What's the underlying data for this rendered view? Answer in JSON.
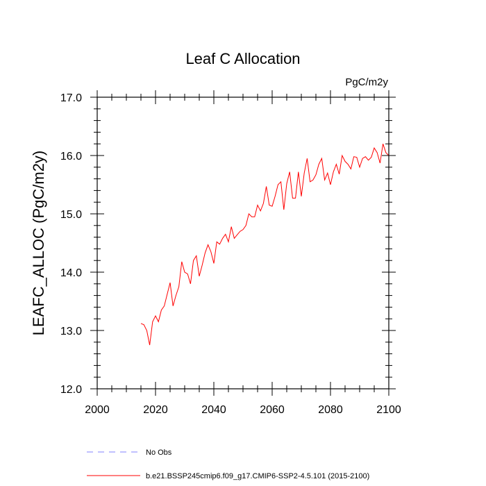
{
  "chart_data": {
    "type": "line",
    "title": "Leaf C Allocation",
    "units_label": "PgC/m2y",
    "ylabel": "LEAFC_ALLOC  (PgC/m2y)",
    "xlabel": "",
    "xlim": [
      2000,
      2100
    ],
    "ylim": [
      12.0,
      17.0
    ],
    "xticks": [
      2000,
      2020,
      2040,
      2060,
      2080,
      2100
    ],
    "xtick_labels": [
      "2000",
      "2020",
      "2040",
      "2060",
      "2080",
      "2100"
    ],
    "yticks": [
      12.0,
      13.0,
      14.0,
      15.0,
      16.0,
      17.0
    ],
    "ytick_labels": [
      "12.0",
      "13.0",
      "14.0",
      "15.0",
      "16.0",
      "17.0"
    ],
    "legend_location": "bottom",
    "series": [
      {
        "name": "b.e21.BSSP245cmip6.f09_g17.CMIP6-SSP2-4.5.101 (2015-2100)",
        "color": "#ff0000",
        "style": "solid",
        "x": [
          2015,
          2016,
          2017,
          2018,
          2019,
          2020,
          2021,
          2022,
          2023,
          2024,
          2025,
          2026,
          2027,
          2028,
          2029,
          2030,
          2031,
          2032,
          2033,
          2034,
          2035,
          2036,
          2037,
          2038,
          2039,
          2040,
          2041,
          2042,
          2043,
          2044,
          2045,
          2046,
          2047,
          2048,
          2049,
          2050,
          2051,
          2052,
          2053,
          2054,
          2055,
          2056,
          2057,
          2058,
          2059,
          2060,
          2061,
          2062,
          2063,
          2064,
          2065,
          2066,
          2067,
          2068,
          2069,
          2070,
          2071,
          2072,
          2073,
          2074,
          2075,
          2076,
          2077,
          2078,
          2079,
          2080,
          2081,
          2082,
          2083,
          2084,
          2085,
          2086,
          2087,
          2088,
          2089,
          2090,
          2091,
          2092,
          2093,
          2094,
          2095,
          2096,
          2097,
          2098,
          2099,
          2100
        ],
        "values": [
          13.12,
          13.1,
          13.0,
          12.75,
          13.15,
          13.25,
          13.15,
          13.35,
          13.42,
          13.62,
          13.82,
          13.42,
          13.6,
          13.75,
          14.18,
          14.0,
          13.97,
          13.8,
          14.2,
          14.28,
          13.93,
          14.12,
          14.33,
          14.47,
          14.35,
          14.15,
          14.52,
          14.48,
          14.58,
          14.65,
          14.52,
          14.78,
          14.58,
          14.64,
          14.7,
          14.73,
          14.8,
          15.0,
          14.95,
          14.95,
          15.15,
          15.05,
          15.18,
          15.47,
          15.15,
          15.13,
          15.3,
          15.5,
          15.55,
          15.07,
          15.52,
          15.72,
          15.27,
          15.27,
          15.72,
          15.3,
          15.7,
          15.95,
          15.55,
          15.58,
          15.67,
          15.85,
          15.95,
          15.58,
          15.7,
          15.5,
          15.72,
          15.85,
          15.68,
          16.0,
          15.9,
          15.85,
          15.77,
          15.98,
          15.97,
          15.8,
          15.95,
          15.98,
          15.92,
          15.97,
          16.13,
          16.05,
          15.87,
          16.2,
          16.05,
          16.0
        ]
      },
      {
        "name": "No Obs",
        "color": "#8080ff",
        "style": "dashed",
        "x": [],
        "values": []
      }
    ]
  }
}
